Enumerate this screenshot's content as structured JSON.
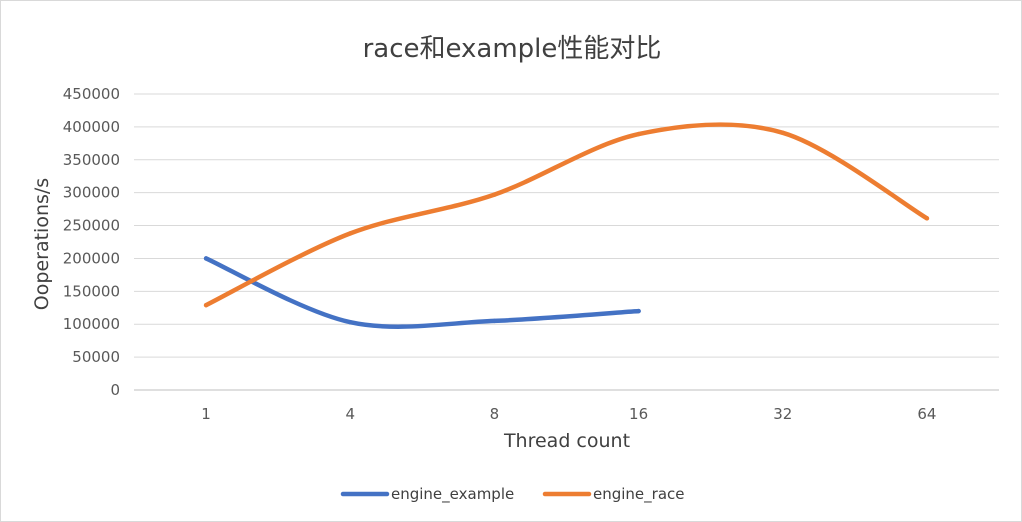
{
  "chart_data": {
    "type": "line",
    "title": "race和example性能对比",
    "xlabel": "Thread count",
    "ylabel": "Ooperations/s",
    "categories": [
      "1",
      "4",
      "8",
      "16",
      "32",
      "64"
    ],
    "ylim": [
      0,
      450000
    ],
    "yticks": [
      0,
      50000,
      100000,
      150000,
      200000,
      250000,
      300000,
      350000,
      400000,
      450000
    ],
    "grid": true,
    "legend_position": "bottom",
    "series": [
      {
        "name": "engine_example",
        "color": "#4472c4",
        "values": [
          200000,
          103000,
          105000,
          120000,
          null,
          null
        ]
      },
      {
        "name": "engine_race",
        "color": "#ed7d31",
        "values": [
          129000,
          238000,
          297000,
          389000,
          391000,
          261000
        ]
      }
    ]
  }
}
